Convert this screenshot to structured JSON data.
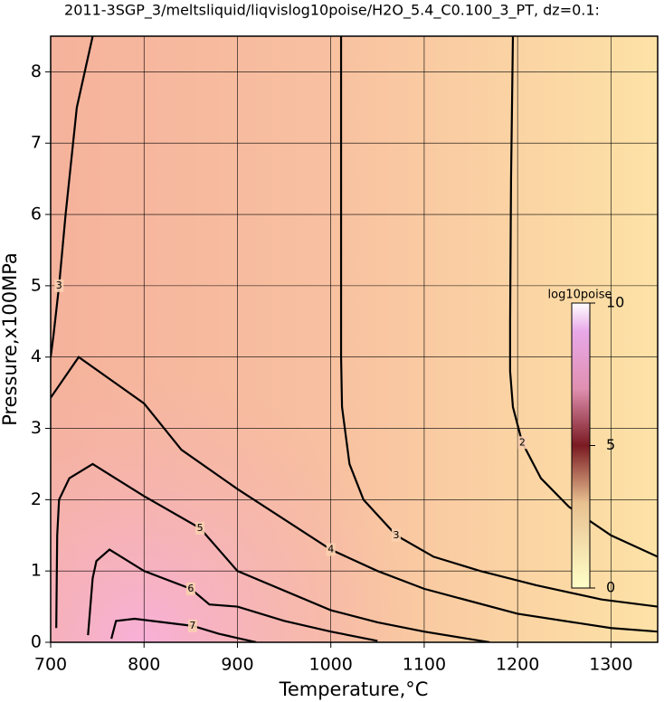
{
  "chart_data": {
    "type": "contour",
    "title": "2011-3SGP_3/meltsliquid/liqvislog10poise/H2O_5.4_C0.100_3_PT, dz=0.1:",
    "x_label": "Temperature,°C",
    "y_label": "Pressure,x100MPa",
    "xlim": [
      700,
      1350
    ],
    "ylim": [
      0,
      8.5
    ],
    "xticks": [
      700,
      800,
      900,
      1000,
      1100,
      1200,
      1300
    ],
    "yticks": [
      0,
      1,
      2,
      3,
      4,
      5,
      6,
      7,
      8
    ],
    "grid": true,
    "colorbar": {
      "label": "log10poise",
      "lim": [
        0,
        10
      ],
      "ticks": [
        0,
        5,
        10
      ]
    },
    "contours": [
      {
        "level": 2,
        "x": [
          1195,
          1193,
          1192,
          1192,
          1195,
          1205,
          1225,
          1255,
          1300,
          1350
        ],
        "y": [
          8.5,
          6.5,
          4.5,
          3.8,
          3.3,
          2.8,
          2.3,
          1.9,
          1.5,
          1.2
        ]
      },
      {
        "level": 3,
        "x": [
          745,
          728,
          716,
          709,
          703,
          700
        ],
        "y": [
          8.5,
          7.5,
          6,
          5,
          4.3,
          4
        ]
      },
      {
        "level": 3,
        "x": [
          1011,
          1011,
          1011,
          1012,
          1020,
          1035,
          1070,
          1110,
          1160,
          1220,
          1290,
          1350
        ],
        "y": [
          8.5,
          6,
          4,
          3.3,
          2.5,
          2,
          1.5,
          1.2,
          1.0,
          0.8,
          0.6,
          0.5
        ]
      },
      {
        "level": 4,
        "x": [
          700,
          730,
          800,
          840,
          900,
          1000,
          1050,
          1100,
          1200,
          1300,
          1350
        ],
        "y": [
          3.43,
          4.0,
          3.35,
          2.7,
          2.15,
          1.3,
          1.0,
          0.75,
          0.4,
          0.2,
          0.15
        ]
      },
      {
        "level": 5,
        "x": [
          706,
          707,
          709,
          720,
          745,
          800,
          860,
          900,
          1000,
          1050,
          1100,
          1170
        ],
        "y": [
          0.2,
          1.5,
          2.0,
          2.3,
          2.5,
          2.05,
          1.6,
          1.0,
          0.45,
          0.28,
          0.15,
          0.0
        ]
      },
      {
        "level": 6,
        "x": [
          740,
          745,
          749,
          763,
          800,
          850,
          870,
          900,
          950,
          1000,
          1050
        ],
        "y": [
          0.1,
          0.9,
          1.14,
          1.3,
          1.0,
          0.75,
          0.53,
          0.5,
          0.3,
          0.15,
          0.02
        ]
      },
      {
        "level": 7,
        "x": [
          765,
          770,
          790,
          852,
          880,
          920
        ],
        "y": [
          0.05,
          0.3,
          0.33,
          0.23,
          0.12,
          0.0
        ]
      }
    ]
  }
}
